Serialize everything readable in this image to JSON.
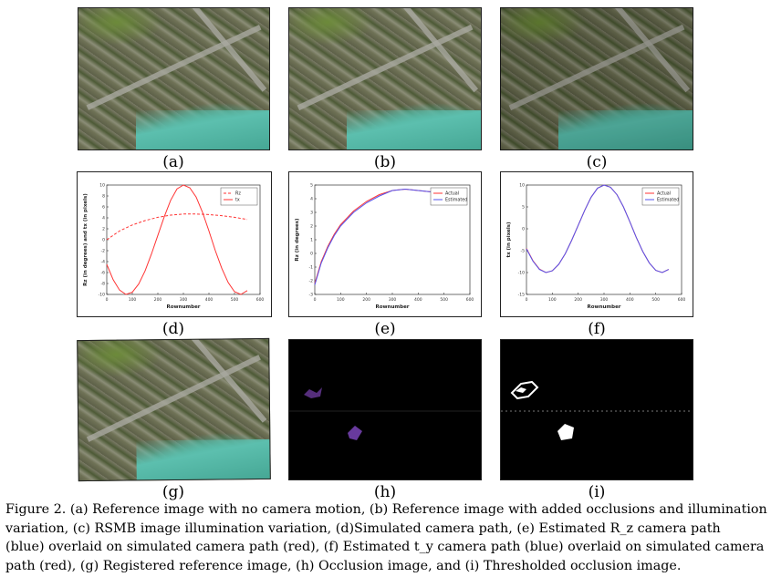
{
  "panels": {
    "a": {
      "label": "(a)",
      "icon": "aerial-image"
    },
    "b": {
      "label": "(b)",
      "icon": "aerial-image-occluded"
    },
    "c": {
      "label": "(c)",
      "icon": "aerial-image-rsmb"
    },
    "d": {
      "label": "(d)"
    },
    "e": {
      "label": "(e)"
    },
    "f": {
      "label": "(f)"
    },
    "g": {
      "label": "(g)",
      "icon": "aerial-image-registered"
    },
    "h": {
      "label": "(h)",
      "icon": "occlusion-image"
    },
    "i": {
      "label": "(i)",
      "icon": "thresholded-occlusion-image"
    }
  },
  "caption": {
    "line1": "Figure 2. (a) Reference image with no camera motion, (b) Reference image with added occlusions and illumination",
    "line2": "variation, (c) RSMB image illumination variation, (d)Simulated camera path, (e) Estimated R_z camera path",
    "line3": "(blue) overlaid on simulated camera path (red), (f) Estimated t_y camera path (blue) overlaid on simulated camera",
    "line4": "path (red), (g) Registered reference image, (h) Occlusion image, and (i) Thresholded occlusion image."
  },
  "chart_data": [
    {
      "id": "d",
      "type": "line",
      "xlabel": "Rownumber",
      "ylabel": "Rz (in degrees)  and  tx (in pixels)",
      "xlim": [
        0,
        600
      ],
      "ylim": [
        -10,
        10
      ],
      "xticks": [
        "0",
        "100",
        "200",
        "300",
        "400",
        "500",
        "600"
      ],
      "yticks": [
        "10",
        "8",
        "6",
        "4",
        "2",
        "0",
        "-2",
        "-4",
        "-6",
        "-8",
        "-10"
      ],
      "legend": "top-right",
      "series": [
        {
          "name": "Rz",
          "style": "dashed",
          "color": "#ff3333",
          "x": [
            0,
            50,
            100,
            150,
            200,
            250,
            300,
            350,
            400,
            450,
            500,
            550
          ],
          "y": [
            0,
            1.6,
            2.7,
            3.5,
            4.1,
            4.5,
            4.7,
            4.7,
            4.6,
            4.4,
            4.1,
            3.7
          ]
        },
        {
          "name": "tx",
          "style": "solid",
          "color": "#ff3333",
          "x": [
            0,
            25,
            50,
            75,
            100,
            125,
            150,
            175,
            200,
            225,
            250,
            275,
            300,
            325,
            350,
            375,
            400,
            425,
            450,
            475,
            500,
            525,
            550
          ],
          "y": [
            -4.5,
            -7.3,
            -9.2,
            -10,
            -9.6,
            -8.1,
            -5.7,
            -2.6,
            0.8,
            4.2,
            7.2,
            9.3,
            10,
            9.5,
            7.8,
            5.0,
            1.6,
            -2.0,
            -5.2,
            -7.8,
            -9.5,
            -10,
            -9.3
          ]
        }
      ]
    },
    {
      "id": "e",
      "type": "line",
      "xlabel": "Rownumber",
      "ylabel": "Rz (in degrees)",
      "xlim": [
        0,
        600
      ],
      "ylim": [
        -3,
        5
      ],
      "xticks": [
        "0",
        "100",
        "200",
        "300",
        "400",
        "500",
        "600"
      ],
      "yticks": [
        "5",
        "4",
        "3",
        "2",
        "1",
        "0",
        "-1",
        "-2",
        "-3"
      ],
      "legend": "top-right",
      "series": [
        {
          "name": "Actual",
          "color": "#ff3333",
          "x": [
            0,
            25,
            50,
            75,
            100,
            150,
            200,
            250,
            300,
            350,
            400,
            450,
            500,
            550
          ],
          "y": [
            -2.2,
            -0.6,
            0.5,
            1.4,
            2.1,
            3.1,
            3.8,
            4.3,
            4.6,
            4.7,
            4.6,
            4.5,
            4.2,
            3.9
          ]
        },
        {
          "name": "Estimated",
          "color": "#5555ee",
          "x": [
            0,
            25,
            50,
            75,
            100,
            150,
            200,
            250,
            300,
            350,
            400,
            450,
            500,
            550
          ],
          "y": [
            -2.3,
            -0.7,
            0.4,
            1.3,
            2.0,
            3.0,
            3.7,
            4.2,
            4.6,
            4.7,
            4.6,
            4.5,
            4.2,
            3.9
          ]
        }
      ]
    },
    {
      "id": "f",
      "type": "line",
      "xlabel": "Rownumber",
      "ylabel": "tx (in pixels)",
      "xlim": [
        0,
        600
      ],
      "ylim": [
        -15,
        10
      ],
      "xticks": [
        "0",
        "100",
        "200",
        "300",
        "400",
        "500",
        "600"
      ],
      "yticks": [
        "10",
        "5",
        "0",
        "-5",
        "-10",
        "-15"
      ],
      "legend": "top-right",
      "series": [
        {
          "name": "Actual",
          "color": "#ff3333",
          "x": [
            0,
            25,
            50,
            75,
            100,
            125,
            150,
            175,
            200,
            225,
            250,
            275,
            300,
            325,
            350,
            375,
            400,
            425,
            450,
            475,
            500,
            525,
            550
          ],
          "y": [
            -4.5,
            -7.3,
            -9.2,
            -10,
            -9.6,
            -8.1,
            -5.7,
            -2.6,
            0.8,
            4.2,
            7.2,
            9.3,
            10,
            9.5,
            7.8,
            5.0,
            1.6,
            -2.0,
            -5.2,
            -7.8,
            -9.5,
            -10,
            -9.3
          ]
        },
        {
          "name": "Estimated",
          "color": "#5555ee",
          "x": [
            0,
            25,
            50,
            75,
            100,
            125,
            150,
            175,
            200,
            225,
            250,
            275,
            300,
            325,
            350,
            375,
            400,
            425,
            450,
            475,
            500,
            525,
            550
          ],
          "y": [
            -4.6,
            -7.4,
            -9.3,
            -10,
            -9.6,
            -8.1,
            -5.7,
            -2.6,
            0.8,
            4.2,
            7.2,
            9.3,
            10,
            9.5,
            7.8,
            5.0,
            1.6,
            -2.0,
            -5.2,
            -7.8,
            -9.5,
            -10,
            -9.3
          ]
        }
      ]
    }
  ]
}
